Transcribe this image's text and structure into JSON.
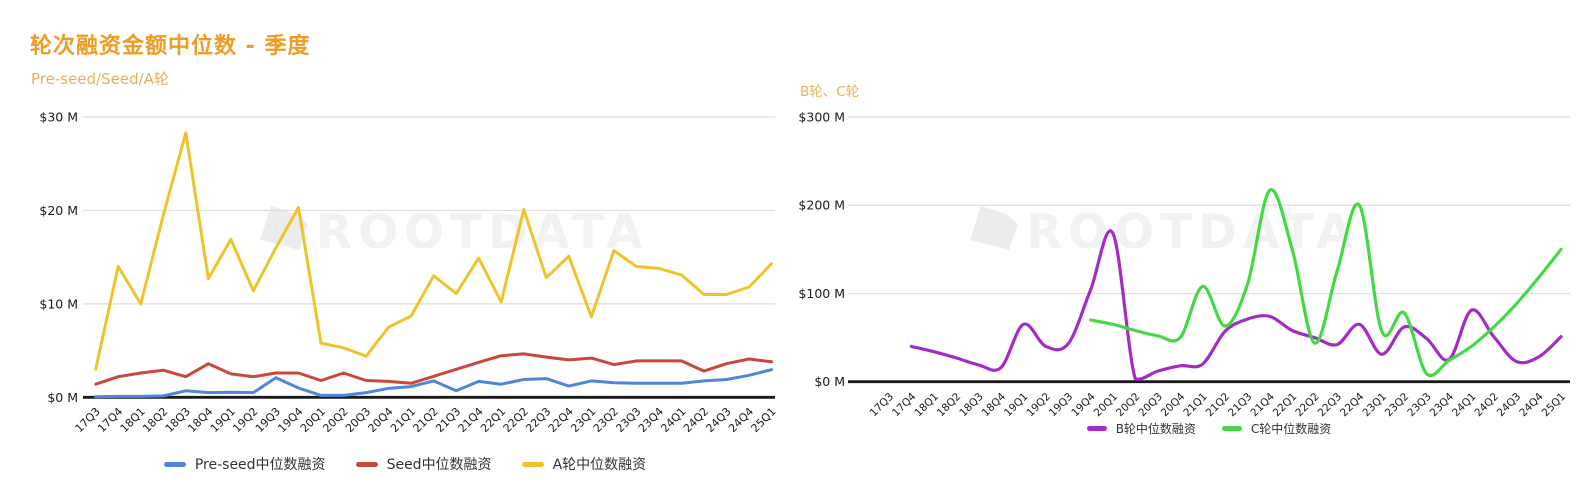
{
  "header": {
    "title": "轮次融资金额中位数 - 季度",
    "title_color": "#EC9C27",
    "subtitle_color": "#EBAF5C"
  },
  "watermark": {
    "text": "ROOTDATA",
    "color": "#f2f2f2",
    "logo_color": "#ececec"
  },
  "axis": {
    "grid_color": "#dedede",
    "axis_color": "#1a1a1a",
    "label_color": "#1a1a1a"
  },
  "chart_data": [
    {
      "type": "line",
      "title": "Pre-seed/Seed/A轮",
      "categories": [
        "17Q3",
        "17Q4",
        "18Q1",
        "18Q2",
        "18Q3",
        "18Q4",
        "19Q1",
        "19Q2",
        "19Q3",
        "19Q4",
        "20Q1",
        "20Q2",
        "20Q3",
        "20Q4",
        "21Q1",
        "21Q2",
        "21Q3",
        "21Q4",
        "22Q1",
        "22Q2",
        "22Q3",
        "22Q4",
        "23Q1",
        "23Q2",
        "23Q3",
        "23Q4",
        "24Q1",
        "24Q2",
        "24Q3",
        "24Q4",
        "25Q1"
      ],
      "unit": "$ M",
      "ylim": [
        0,
        30
      ],
      "yticks_labels": [
        "$0 M",
        "$10 M",
        "$20 M",
        "$30 M"
      ],
      "yticks": [
        0,
        10,
        20,
        30
      ],
      "grid": true,
      "smooth": false,
      "legend_position": "bottom-center",
      "series": [
        {
          "name": "Pre-seed中位数融资",
          "color": "#5186D7",
          "values": [
            0.05,
            0.1,
            0.1,
            0.15,
            0.7,
            0.5,
            0.55,
            0.5,
            2.1,
            1.0,
            0.2,
            0.2,
            0.5,
            0.95,
            1.15,
            1.75,
            0.7,
            1.7,
            1.4,
            1.9,
            2.0,
            1.2,
            1.75,
            1.55,
            1.5,
            1.5,
            1.5,
            1.75,
            1.9,
            2.35,
            2.95
          ]
        },
        {
          "name": "Seed中位数融资",
          "color": "#C9473B",
          "values": [
            1.4,
            2.2,
            2.6,
            2.9,
            2.2,
            3.6,
            2.5,
            2.2,
            2.6,
            2.6,
            1.8,
            2.6,
            1.8,
            1.7,
            1.5,
            2.25,
            3.0,
            3.75,
            4.45,
            4.65,
            4.3,
            4.0,
            4.2,
            3.5,
            3.9,
            3.9,
            3.9,
            2.8,
            3.6,
            4.1,
            3.8
          ]
        },
        {
          "name": "A轮中位数融资",
          "color": "#EFC32B",
          "values": [
            3,
            14,
            10,
            19.5,
            28.3,
            12.7,
            16.9,
            11.4,
            16,
            20.3,
            5.8,
            5.3,
            4.4,
            7.5,
            8.7,
            13,
            11.1,
            14.9,
            10.2,
            20.1,
            12.8,
            15.1,
            8.6,
            15.7,
            14,
            13.8,
            13.1,
            11,
            11,
            11.8,
            14.3
          ]
        }
      ]
    },
    {
      "type": "line",
      "title": "B轮、C轮",
      "categories": [
        "17Q3",
        "17Q4",
        "18Q1",
        "18Q2",
        "18Q3",
        "18Q4",
        "19Q1",
        "19Q2",
        "19Q3",
        "19Q4",
        "20Q1",
        "20Q2",
        "20Q3",
        "20Q4",
        "21Q1",
        "21Q2",
        "21Q3",
        "21Q4",
        "22Q1",
        "22Q2",
        "22Q3",
        "22Q4",
        "23Q1",
        "23Q2",
        "23Q3",
        "23Q4",
        "24Q1",
        "24Q2",
        "24Q3",
        "24Q4",
        "25Q1"
      ],
      "unit": "$ M",
      "ylim": [
        0,
        300
      ],
      "yticks_labels": [
        "$0 M",
        "$100 M",
        "$200 M",
        "$300 M"
      ],
      "yticks": [
        0,
        100,
        200,
        300
      ],
      "grid": true,
      "smooth": true,
      "legend_position": "bottom-center",
      "series": [
        {
          "name": "B轮中位数融资",
          "color": "#A32CC4",
          "values": [
            null,
            40,
            34,
            27,
            19,
            16,
            65,
            40,
            43,
            104,
            168,
            3,
            12,
            18,
            20,
            57,
            71,
            74,
            58,
            50,
            42,
            65,
            31,
            62,
            49,
            25,
            81,
            51,
            23,
            28,
            51
          ]
        },
        {
          "name": "C轮中位数融资",
          "color": "#44D944",
          "values": [
            null,
            null,
            null,
            null,
            null,
            null,
            null,
            null,
            null,
            70,
            65,
            58,
            52,
            50,
            108,
            63,
            110,
            217,
            150,
            44,
            125,
            200,
            57,
            78,
            9,
            24,
            40,
            62,
            88,
            118,
            150
          ]
        }
      ]
    }
  ]
}
